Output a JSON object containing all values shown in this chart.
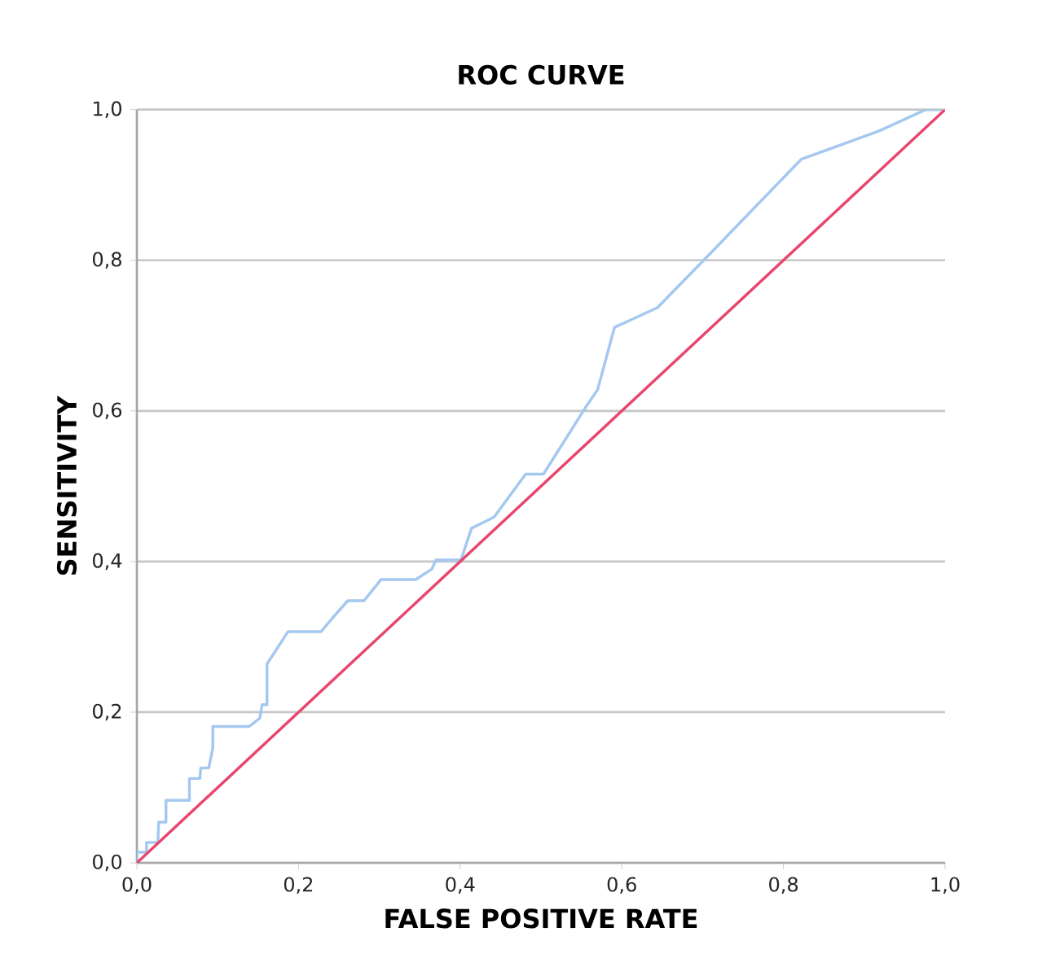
{
  "chart_data": {
    "type": "line",
    "title": "ROC CURVE",
    "xlabel": "FALSE POSITIVE RATE",
    "ylabel": "SENSITIVITY",
    "xlim": [
      0,
      1
    ],
    "ylim": [
      0,
      1
    ],
    "xticks": [
      {
        "value": 0,
        "label": "0,0"
      },
      {
        "value": 0.2,
        "label": "0,2"
      },
      {
        "value": 0.4,
        "label": "0,4"
      },
      {
        "value": 0.6,
        "label": "0,6"
      },
      {
        "value": 0.8,
        "label": "0,8"
      },
      {
        "value": 1,
        "label": "1,0"
      }
    ],
    "yticks": [
      {
        "value": 0,
        "label": "0,0"
      },
      {
        "value": 0.2,
        "label": "0,2"
      },
      {
        "value": 0.4,
        "label": "0,4"
      },
      {
        "value": 0.6,
        "label": "0,6"
      },
      {
        "value": 0.8,
        "label": "0,8"
      },
      {
        "value": 1,
        "label": "1,0"
      }
    ],
    "grid": "y",
    "marker": "none",
    "line_style": "solid",
    "series": [
      {
        "color": "#a4c8f0",
        "x": [
          0,
          0,
          0.012,
          0.012,
          0.026,
          0.027,
          0.036,
          0.036,
          0.065,
          0.065,
          0.078,
          0.079,
          0.089,
          0.094,
          0.094,
          0.139,
          0.152,
          0.155,
          0.161,
          0.161,
          0.187,
          0.228,
          0.242,
          0.261,
          0.281,
          0.302,
          0.345,
          0.365,
          0.37,
          0.401,
          0.414,
          0.442,
          0.481,
          0.503,
          0.556,
          0.57,
          0.591,
          0.644,
          0.704,
          0.822,
          0.919,
          0.976,
          1
        ],
        "values": [
          0,
          0.014,
          0.014,
          0.027,
          0.027,
          0.054,
          0.054,
          0.083,
          0.083,
          0.112,
          0.112,
          0.126,
          0.126,
          0.153,
          0.181,
          0.181,
          0.192,
          0.21,
          0.21,
          0.264,
          0.307,
          0.307,
          0.325,
          0.348,
          0.348,
          0.376,
          0.376,
          0.39,
          0.402,
          0.402,
          0.444,
          0.459,
          0.516,
          0.516,
          0.606,
          0.628,
          0.711,
          0.737,
          0.803,
          0.934,
          0.972,
          1,
          1
        ]
      },
      {
        "color": "#e8466e",
        "x": [
          0,
          1
        ],
        "values": [
          0,
          1
        ]
      }
    ]
  }
}
